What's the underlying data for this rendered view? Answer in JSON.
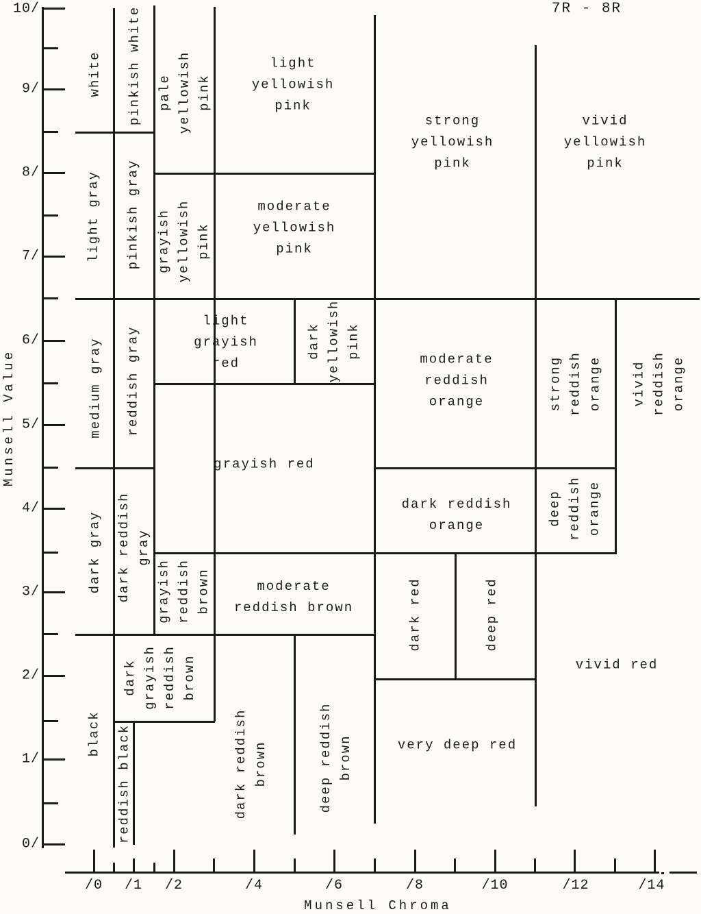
{
  "title": "7R - 8R",
  "axes": {
    "y": {
      "label": "Munsell Value",
      "tick_labels": [
        "10/",
        "9/",
        "8/",
        "7/",
        "6/",
        "5/",
        "4/",
        "3/",
        "2/",
        "1/",
        "0/"
      ]
    },
    "x": {
      "label": "Munsell Chroma",
      "tick_labels": [
        "/0",
        "/1",
        "/2",
        "/4",
        "/6",
        "/8",
        "/10",
        "/12",
        "/14"
      ]
    }
  },
  "regions": [
    {
      "name": "white",
      "lines": [
        "white"
      ],
      "chroma": [
        0,
        0.5
      ],
      "value": [
        8.5,
        10
      ]
    },
    {
      "name": "pinkish white",
      "lines": [
        "pinkish white"
      ],
      "chroma": [
        0.5,
        1.5
      ],
      "value": [
        8.5,
        10
      ]
    },
    {
      "name": "pale yellowish pink",
      "lines": [
        "pale",
        "yellowish",
        "pink"
      ],
      "chroma": [
        1.5,
        3
      ],
      "value": [
        8,
        10
      ]
    },
    {
      "name": "light yellowish pink",
      "lines": [
        "light",
        "yellowish",
        "pink"
      ],
      "chroma": [
        3,
        7
      ],
      "value": [
        8,
        10
      ]
    },
    {
      "name": "strong yellowish pink",
      "lines": [
        "strong",
        "yellowish",
        "pink"
      ],
      "chroma": [
        7,
        11
      ],
      "value": [
        6.5,
        10
      ]
    },
    {
      "name": "vivid yellowish pink",
      "lines": [
        "vivid",
        "yellowish",
        "pink"
      ],
      "chroma": [
        11,
        "14+"
      ],
      "value": [
        6.5,
        10
      ]
    },
    {
      "name": "light gray",
      "lines": [
        "light gray"
      ],
      "chroma": [
        0,
        0.5
      ],
      "value": [
        6.5,
        8.5
      ]
    },
    {
      "name": "pinkish gray",
      "lines": [
        "pinkish gray"
      ],
      "chroma": [
        0.5,
        1.5
      ],
      "value": [
        6.5,
        8.5
      ]
    },
    {
      "name": "grayish yellowish pink",
      "lines": [
        "grayish",
        "yellowish",
        "pink"
      ],
      "chroma": [
        1.5,
        3
      ],
      "value": [
        6.5,
        8
      ]
    },
    {
      "name": "moderate yellowish pink",
      "lines": [
        "moderate",
        "yellowish",
        "pink"
      ],
      "chroma": [
        3,
        7
      ],
      "value": [
        6.5,
        8
      ]
    },
    {
      "name": "medium gray",
      "lines": [
        "medium gray"
      ],
      "chroma": [
        0,
        0.5
      ],
      "value": [
        4.5,
        6.5
      ]
    },
    {
      "name": "reddish gray",
      "lines": [
        "reddish gray"
      ],
      "chroma": [
        0.5,
        1.5
      ],
      "value": [
        4.5,
        6.5
      ]
    },
    {
      "name": "light grayish red",
      "lines": [
        "light",
        "grayish",
        "red"
      ],
      "chroma": [
        1.5,
        5
      ],
      "value": [
        5.5,
        6.5
      ]
    },
    {
      "name": "dark yellowish pink",
      "lines": [
        "dark",
        "yellowish",
        "pink"
      ],
      "chroma": [
        5,
        7
      ],
      "value": [
        5.5,
        6.5
      ]
    },
    {
      "name": "moderate reddish orange",
      "lines": [
        "moderate",
        "reddish",
        "orange"
      ],
      "chroma": [
        7,
        11
      ],
      "value": [
        4.5,
        6.5
      ]
    },
    {
      "name": "strong reddish orange",
      "lines": [
        "strong",
        "reddish",
        "orange"
      ],
      "chroma": [
        11,
        13
      ],
      "value": [
        4.5,
        6.5
      ]
    },
    {
      "name": "vivid reddish orange",
      "lines": [
        "vivid",
        "reddish",
        "orange"
      ],
      "chroma": [
        13,
        "14+"
      ],
      "value": [
        4.5,
        6.5
      ]
    },
    {
      "name": "grayish red",
      "lines": [
        "grayish red"
      ],
      "chroma": [
        1.5,
        7
      ],
      "value": [
        3.5,
        5.5
      ]
    },
    {
      "name": "dark reddish orange",
      "lines": [
        "dark reddish",
        "orange"
      ],
      "chroma": [
        7,
        11
      ],
      "value": [
        3.5,
        4.5
      ]
    },
    {
      "name": "deep reddish orange",
      "lines": [
        "deep",
        "reddish",
        "orange"
      ],
      "chroma": [
        11,
        13
      ],
      "value": [
        3.5,
        4.5
      ]
    },
    {
      "name": "dark gray",
      "lines": [
        "dark gray"
      ],
      "chroma": [
        0,
        0.5
      ],
      "value": [
        2.5,
        4.5
      ]
    },
    {
      "name": "dark reddish gray",
      "lines": [
        "dark reddish",
        "gray"
      ],
      "chroma": [
        0.5,
        1.5
      ],
      "value": [
        2.5,
        4.5
      ]
    },
    {
      "name": "grayish reddish brown",
      "lines": [
        "grayish",
        "reddish",
        "brown"
      ],
      "chroma": [
        1.5,
        3
      ],
      "value": [
        2.5,
        3.5
      ]
    },
    {
      "name": "moderate reddish brown",
      "lines": [
        "moderate",
        "reddish brown"
      ],
      "chroma": [
        3,
        7
      ],
      "value": [
        2.5,
        3.5
      ]
    },
    {
      "name": "dark red",
      "lines": [
        "dark red"
      ],
      "chroma": [
        7,
        9
      ],
      "value": [
        2,
        3.5
      ]
    },
    {
      "name": "deep red",
      "lines": [
        "deep red"
      ],
      "chroma": [
        9,
        11
      ],
      "value": [
        2,
        3.5
      ]
    },
    {
      "name": "vivid red",
      "lines": [
        "vivid red"
      ],
      "chroma": [
        11,
        "14+"
      ],
      "value": [
        0,
        3.5
      ]
    },
    {
      "name": "dark grayish reddish brown",
      "lines": [
        "dark",
        "grayish",
        "reddish",
        "brown"
      ],
      "chroma": [
        0.5,
        3
      ],
      "value": [
        1.5,
        2.5
      ]
    },
    {
      "name": "black",
      "lines": [
        "black"
      ],
      "chroma": [
        0,
        0.5
      ],
      "value": [
        0,
        2.5
      ]
    },
    {
      "name": "reddish black",
      "lines": [
        "reddish black"
      ],
      "chroma": [
        0.5,
        1
      ],
      "value": [
        0,
        1.5
      ]
    },
    {
      "name": "dark reddish brown",
      "lines": [
        "dark reddish",
        "brown"
      ],
      "chroma": [
        1,
        5
      ],
      "value": [
        0,
        2.5
      ]
    },
    {
      "name": "deep reddish brown",
      "lines": [
        "deep reddish",
        "brown"
      ],
      "chroma": [
        5,
        7
      ],
      "value": [
        0,
        2.5
      ]
    },
    {
      "name": "very deep red",
      "lines": [
        "very deep red"
      ],
      "chroma": [
        7,
        11
      ],
      "value": [
        0,
        2
      ]
    }
  ]
}
